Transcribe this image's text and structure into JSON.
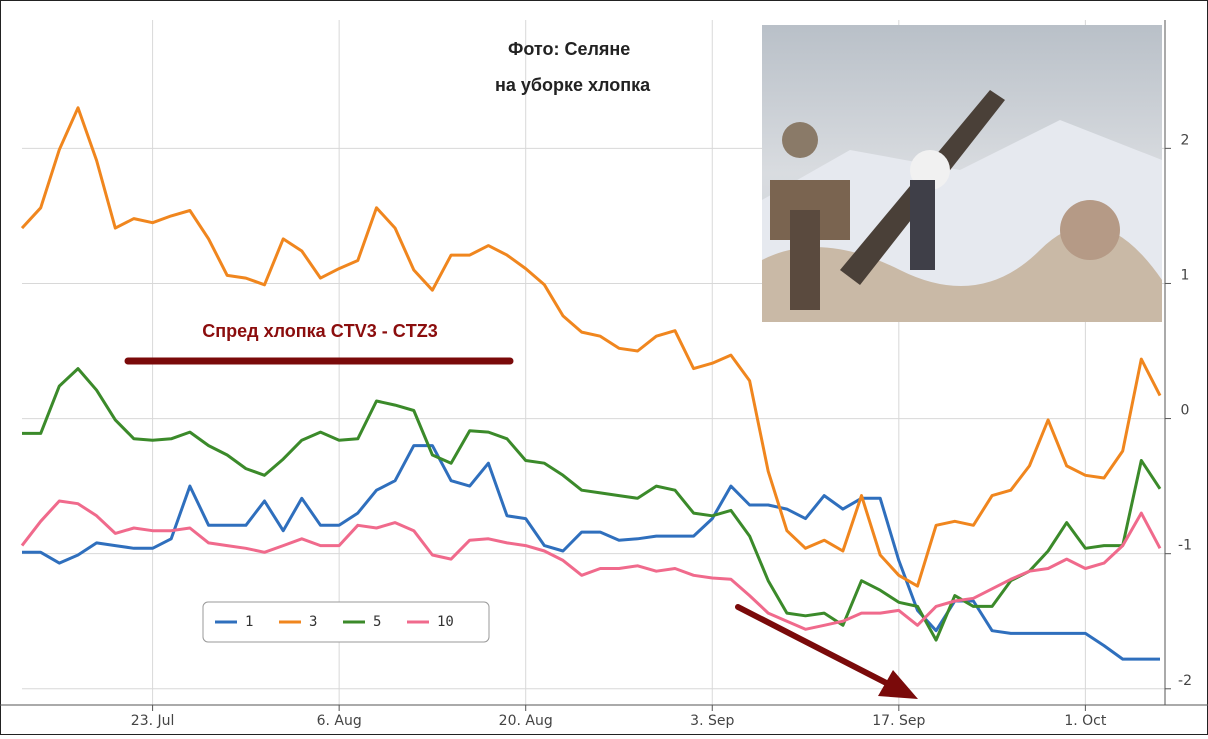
{
  "chart_data": {
    "type": "line",
    "photo_caption": [
      "Фото:    Селяне",
      "на уборке хлопка"
    ],
    "annotation": "Спред хлопка CTV3 - CTZ3",
    "categories": [
      null,
      null,
      null,
      null,
      null,
      null,
      null,
      "23. Jul",
      null,
      null,
      null,
      null,
      null,
      null,
      null,
      null,
      null,
      "6. Aug",
      null,
      null,
      null,
      null,
      null,
      null,
      null,
      null,
      null,
      "20. Aug",
      null,
      null,
      null,
      null,
      null,
      null,
      null,
      null,
      null,
      "3. Sep",
      null,
      null,
      null,
      null,
      null,
      null,
      null,
      null,
      null,
      "17. Sep",
      null,
      null,
      null,
      null,
      null,
      null,
      null,
      null,
      null,
      "1. Oct",
      null,
      null,
      null,
      null
    ],
    "series": [
      {
        "name": "1",
        "color": "#2f6fbd",
        "values": [
          -0.99,
          -0.99,
          -1.07,
          -1.01,
          -0.92,
          -0.94,
          -0.96,
          -0.96,
          -0.89,
          -0.5,
          -0.79,
          -0.79,
          -0.79,
          -0.61,
          -0.83,
          -0.59,
          -0.79,
          -0.79,
          -0.7,
          -0.53,
          -0.46,
          -0.2,
          -0.2,
          -0.46,
          -0.5,
          -0.33,
          -0.72,
          -0.74,
          -0.94,
          -0.98,
          -0.84,
          -0.84,
          -0.9,
          -0.89,
          -0.87,
          -0.87,
          -0.87,
          -0.74,
          -0.5,
          -0.64,
          -0.64,
          -0.67,
          -0.74,
          -0.57,
          -0.67,
          -0.59,
          -0.59,
          -1.05,
          -1.42,
          -1.57,
          -1.35,
          -1.35,
          -1.57,
          -1.59,
          -1.59,
          -1.59,
          -1.59,
          -1.59,
          -1.68,
          -1.78,
          -1.78,
          -1.78
        ]
      },
      {
        "name": "3",
        "color": "#f0861e",
        "values": [
          1.41,
          1.56,
          1.99,
          2.3,
          1.91,
          1.41,
          1.48,
          1.45,
          1.5,
          1.54,
          1.33,
          1.06,
          1.04,
          0.99,
          1.33,
          1.24,
          1.04,
          1.11,
          1.17,
          1.56,
          1.41,
          1.1,
          0.95,
          1.21,
          1.21,
          1.28,
          1.21,
          1.11,
          0.99,
          0.76,
          0.64,
          0.61,
          0.52,
          0.5,
          0.61,
          0.65,
          0.37,
          0.41,
          0.47,
          0.28,
          -0.39,
          -0.83,
          -0.96,
          -0.9,
          -0.98,
          -0.57,
          -1.01,
          -1.16,
          -1.24,
          -0.79,
          -0.76,
          -0.79,
          -0.57,
          -0.53,
          -0.35,
          -0.01,
          -0.35,
          -0.42,
          -0.44,
          -0.24,
          0.44,
          0.17
        ]
      },
      {
        "name": "5",
        "color": "#3b8a2a",
        "values": [
          -0.11,
          -0.11,
          0.24,
          0.37,
          0.21,
          -0.01,
          -0.15,
          -0.16,
          -0.15,
          -0.1,
          -0.2,
          -0.27,
          -0.37,
          -0.42,
          -0.3,
          -0.16,
          -0.1,
          -0.16,
          -0.15,
          0.13,
          0.1,
          0.06,
          -0.27,
          -0.33,
          -0.09,
          -0.1,
          -0.15,
          -0.31,
          -0.33,
          -0.42,
          -0.53,
          -0.55,
          -0.57,
          -0.59,
          -0.5,
          -0.53,
          -0.7,
          -0.72,
          -0.68,
          -0.87,
          -1.2,
          -1.44,
          -1.46,
          -1.44,
          -1.53,
          -1.2,
          -1.27,
          -1.36,
          -1.39,
          -1.64,
          -1.31,
          -1.39,
          -1.39,
          -1.2,
          -1.13,
          -0.98,
          -0.77,
          -0.96,
          -0.94,
          -0.94,
          -0.31,
          -0.52
        ]
      },
      {
        "name": "10",
        "color": "#f06a8c",
        "values": [
          -0.94,
          -0.76,
          -0.61,
          -0.63,
          -0.72,
          -0.85,
          -0.81,
          -0.83,
          -0.83,
          -0.81,
          -0.92,
          -0.94,
          -0.96,
          -0.99,
          -0.94,
          -0.89,
          -0.94,
          -0.94,
          -0.79,
          -0.81,
          -0.77,
          -0.83,
          -1.01,
          -1.04,
          -0.9,
          -0.89,
          -0.92,
          -0.94,
          -0.98,
          -1.05,
          -1.16,
          -1.11,
          -1.11,
          -1.09,
          -1.13,
          -1.11,
          -1.16,
          -1.18,
          -1.19,
          -1.31,
          -1.44,
          -1.5,
          -1.56,
          -1.53,
          -1.5,
          -1.44,
          -1.44,
          -1.42,
          -1.53,
          -1.39,
          -1.35,
          -1.33,
          -1.26,
          -1.19,
          -1.13,
          -1.11,
          -1.04,
          -1.11,
          -1.07,
          -0.94,
          -0.7,
          -0.96
        ]
      }
    ],
    "ylim": [
      -2.12,
      2.95
    ],
    "yticks": [
      -2,
      -1,
      0,
      1,
      2
    ],
    "y_axis_side": "right",
    "grid": true,
    "legend": "lower-left"
  }
}
